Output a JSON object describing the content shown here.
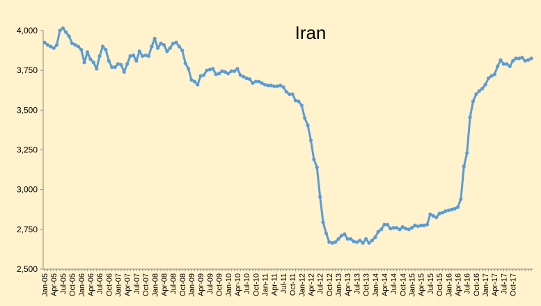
{
  "chart_data": {
    "type": "line",
    "title": "Iran",
    "xlabel": "",
    "ylabel": "",
    "ylim": [
      2500,
      4000
    ],
    "yticks": [
      2500,
      2750,
      3000,
      3250,
      3500,
      3750,
      4000
    ],
    "ytick_labels": [
      "2,500",
      "2,750",
      "3,000",
      "3,250",
      "3,500",
      "3,750",
      "4,000"
    ],
    "xtick_labels": [
      "Jan-05",
      "Apr-05",
      "Jul-05",
      "Oct-05",
      "Jan-06",
      "Apr-06",
      "Jul-06",
      "Oct-06",
      "Jan-07",
      "Apr-07",
      "Jul-07",
      "Oct-07",
      "Jan-08",
      "Apr-08",
      "Jul-08",
      "Oct-08",
      "Jan-09",
      "Apr-09",
      "Jul-09",
      "Oct-09",
      "Jan-10",
      "Apr-10",
      "Jul-10",
      "Oct-10",
      "Jan-11",
      "Apr-11",
      "Jul-11",
      "Oct-11",
      "Jan-12",
      "Apr-12",
      "Jul-12",
      "Oct-12",
      "Jan-13",
      "Apr-13",
      "Jul-13",
      "Oct-13",
      "Jan-14",
      "Apr-14",
      "Jul-14",
      "Oct-14",
      "Jan-15",
      "Apr-15",
      "Jul-15",
      "Oct-15",
      "Jan-16",
      "Apr-16",
      "Jul-16",
      "Oct-16",
      "Jan-17",
      "Apr-17",
      "Jul-17",
      "Oct-17"
    ],
    "grid": false,
    "legend": "none",
    "colors": {
      "series": "#5b9bd5",
      "background": "#fff2cc"
    },
    "series": [
      {
        "x_start": "Jan-05",
        "frequency": "monthly",
        "values": [
          3925,
          3910,
          3900,
          3890,
          3910,
          4000,
          4015,
          3990,
          3965,
          3920,
          3910,
          3900,
          3880,
          3800,
          3865,
          3820,
          3800,
          3760,
          3840,
          3900,
          3880,
          3810,
          3770,
          3770,
          3790,
          3785,
          3740,
          3790,
          3840,
          3845,
          3810,
          3870,
          3840,
          3845,
          3840,
          3900,
          3950,
          3890,
          3920,
          3910,
          3870,
          3890,
          3920,
          3925,
          3900,
          3875,
          3795,
          3760,
          3690,
          3680,
          3660,
          3715,
          3720,
          3750,
          3755,
          3760,
          3725,
          3730,
          3745,
          3740,
          3730,
          3745,
          3745,
          3760,
          3720,
          3710,
          3700,
          3695,
          3670,
          3680,
          3680,
          3670,
          3660,
          3655,
          3655,
          3650,
          3650,
          3655,
          3645,
          3615,
          3600,
          3600,
          3560,
          3555,
          3530,
          3450,
          3405,
          3310,
          3190,
          3140,
          2955,
          2795,
          2725,
          2670,
          2665,
          2670,
          2690,
          2710,
          2720,
          2690,
          2690,
          2675,
          2670,
          2680,
          2665,
          2690,
          2665,
          2680,
          2700,
          2735,
          2750,
          2780,
          2780,
          2755,
          2760,
          2760,
          2750,
          2765,
          2755,
          2750,
          2760,
          2775,
          2770,
          2775,
          2775,
          2780,
          2845,
          2835,
          2825,
          2850,
          2855,
          2865,
          2870,
          2875,
          2880,
          2890,
          2940,
          3145,
          3230,
          3455,
          3555,
          3600,
          3620,
          3635,
          3660,
          3700,
          3715,
          3725,
          3775,
          3815,
          3790,
          3790,
          3775,
          3810,
          3825,
          3825,
          3830,
          3810,
          3815,
          3825
        ]
      }
    ]
  }
}
